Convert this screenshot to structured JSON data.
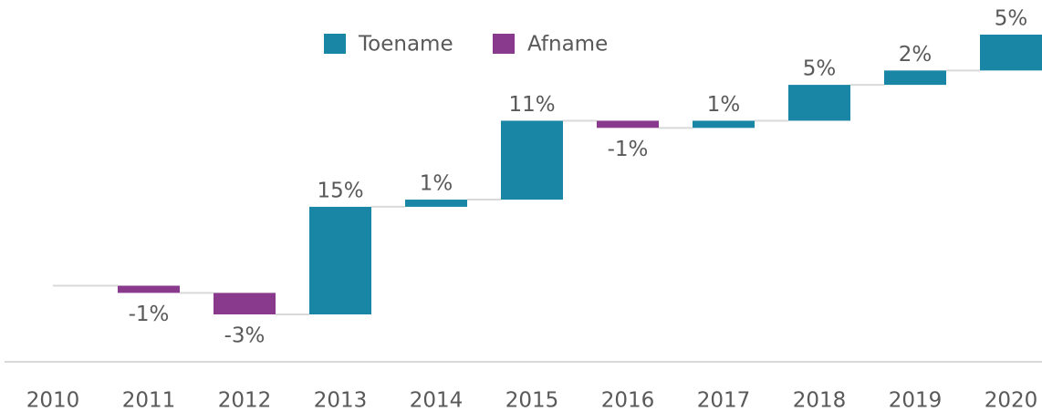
{
  "chart_data": {
    "type": "waterfall",
    "categories": [
      "2010",
      "2011",
      "2012",
      "2013",
      "2014",
      "2015",
      "2016",
      "2017",
      "2018",
      "2019",
      "2020"
    ],
    "values": [
      null,
      -1,
      -3,
      15,
      1,
      11,
      -1,
      1,
      5,
      2,
      5
    ],
    "value_labels": [
      null,
      "-1%",
      "-3%",
      "15%",
      "1%",
      "11%",
      "-1%",
      "1%",
      "5%",
      "2%",
      "5%"
    ],
    "legend": [
      {
        "name": "Toename",
        "color": "#1a86a6"
      },
      {
        "name": "Afname",
        "color": "#893a8c"
      }
    ],
    "legend_position": "top"
  }
}
